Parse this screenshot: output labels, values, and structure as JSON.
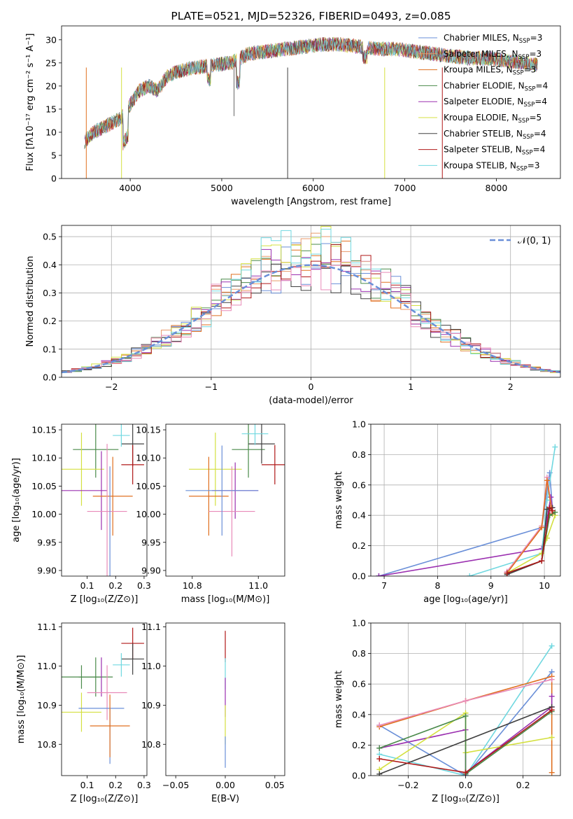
{
  "chart_data": [
    {
      "type": "line",
      "title": "PLATE=0521, MJD=52326, FIBERID=0493, z=0.085",
      "xlabel": "wavelength [Angstrom, rest frame]",
      "ylabel": "Flux [fλ10⁻¹⁷ erg cm⁻² s⁻¹ A⁻¹]",
      "xlim": [
        3250,
        8700
      ],
      "ylim": [
        0,
        33
      ],
      "xticks": [
        4000,
        5000,
        6000,
        7000,
        8000
      ],
      "yticks": [
        0,
        5,
        10,
        15,
        20,
        25,
        30
      ],
      "grid": false,
      "legend": "upper right",
      "series": [
        {
          "name": "Chabrier MILES, N",
          "sub": "SSP",
          "suffix": "=3",
          "color": "#6a8fd8"
        },
        {
          "name": "Salpeter MILES, N",
          "sub": "SSP",
          "suffix": "=3",
          "color": "#e89a6a"
        },
        {
          "name": "Kroupa MILES, N",
          "sub": "SSP",
          "suffix": "=3",
          "color": "#e07020"
        },
        {
          "name": "Chabrier ELODIE, N",
          "sub": "SSP",
          "suffix": "=4",
          "color": "#4a8a4a"
        },
        {
          "name": "Salpeter ELODIE, N",
          "sub": "SSP",
          "suffix": "=4",
          "color": "#9b30b0"
        },
        {
          "name": "Kroupa ELODIE, N",
          "sub": "SSP",
          "suffix": "=5",
          "color": "#d4e040"
        },
        {
          "name": "Chabrier STELIB, N",
          "sub": "SSP",
          "suffix": "=4",
          "color": "#404040"
        },
        {
          "name": "Salpeter STELIB, N",
          "sub": "SSP",
          "suffix": "=4",
          "color": "#b01818"
        },
        {
          "name": "Kroupa STELIB, N",
          "sub": "SSP",
          "suffix": "=3",
          "color": "#70d8e0"
        }
      ],
      "spectrum_envelope": {
        "x": [
          3500,
          3600,
          3700,
          3800,
          3900,
          4000,
          4100,
          4200,
          4300,
          4400,
          4500,
          4700,
          4900,
          5100,
          5200,
          5300,
          5500,
          5700,
          5900,
          6100,
          6300,
          6500,
          6700,
          6900,
          7100,
          7300,
          7500,
          7700,
          7900,
          8100,
          8300,
          8450
        ],
        "y": [
          8,
          10,
          11,
          12,
          13,
          16,
          19,
          20,
          19,
          22,
          23,
          24,
          24.5,
          25,
          26,
          27,
          27.5,
          28,
          28.5,
          29,
          29,
          28.5,
          28,
          28,
          27.5,
          27,
          26.5,
          26,
          26,
          25.5,
          25,
          24.5
        ]
      }
    },
    {
      "type": "step",
      "xlabel": "(data-model)/error",
      "ylabel": "Normed distribution",
      "xlim": [
        -2.5,
        2.5
      ],
      "ylim": [
        0,
        0.54
      ],
      "xticks": [
        -2,
        -1,
        0,
        1,
        2
      ],
      "yticks": [
        0.0,
        0.1,
        0.2,
        0.3,
        0.4,
        0.5
      ],
      "grid": true,
      "legend": "upper right",
      "gaussian_label": "𝒩(0, 1)",
      "gaussian_color": "#6a8fd8",
      "bin_width": 0.1,
      "bin_start": -2.5
    },
    {
      "type": "errorbar",
      "xlabel": "Z [log₁₀(Z/Z⊙)]",
      "ylabel": "age  [log₁₀(age/yr)]",
      "xlim": [
        0.01,
        0.31
      ],
      "ylim": [
        9.89,
        10.16
      ],
      "xticks": [
        0.1,
        0.2,
        0.3
      ],
      "yticks": [
        9.9,
        9.95,
        10.0,
        10.05,
        10.1,
        10.15
      ],
      "points": [
        {
          "x": 0.13,
          "y": 10.115,
          "xerr": 0.08,
          "yerr": 0.05,
          "color": "#4a8a4a"
        },
        {
          "x": 0.26,
          "y": 10.125,
          "xerr": 0.04,
          "yerr": 0.04,
          "color": "#404040"
        },
        {
          "x": 0.22,
          "y": 10.14,
          "xerr": 0.03,
          "yerr": 0.02,
          "color": "#70d8e0"
        },
        {
          "x": 0.26,
          "y": 10.088,
          "xerr": 0.04,
          "yerr": 0.035,
          "color": "#b01818"
        },
        {
          "x": 0.08,
          "y": 10.08,
          "xerr": 0.08,
          "yerr": 0.065,
          "color": "#d4e040"
        },
        {
          "x": 0.09,
          "y": 10.042,
          "xerr": 0.08,
          "yerr": 0.0,
          "color": "#9b30b0"
        },
        {
          "x": 0.15,
          "y": 10.042,
          "xerr": 0.0,
          "yerr": 0.07,
          "color": "#9b30b0"
        },
        {
          "x": 0.19,
          "y": 10.032,
          "xerr": 0.07,
          "yerr": 0.07,
          "color": "#e07020"
        },
        {
          "x": 0.17,
          "y": 10.005,
          "xerr": 0.07,
          "yerr": 0.12,
          "color": "#e88ab8"
        },
        {
          "x": 0.18,
          "y": 9.985,
          "xerr": 0.0,
          "yerr": 0.1,
          "color": "#6a8fd8"
        }
      ]
    },
    {
      "type": "errorbar",
      "xlabel": "mass [log₁₀(M/M⊙)]",
      "ylabel": "",
      "xlim": [
        10.72,
        11.08
      ],
      "ylim": [
        9.89,
        10.16
      ],
      "xticks": [
        10.8,
        11.0
      ],
      "yticks": [
        9.9,
        9.95,
        10.0,
        10.05,
        10.1,
        10.15
      ],
      "points": [
        {
          "x": 10.97,
          "y": 10.115,
          "xerr": 0.05,
          "yerr": 0.05,
          "color": "#4a8a4a"
        },
        {
          "x": 11.01,
          "y": 10.125,
          "xerr": 0.04,
          "yerr": 0.035,
          "color": "#404040"
        },
        {
          "x": 10.99,
          "y": 10.143,
          "xerr": 0.04,
          "yerr": 0.02,
          "color": "#70d8e0"
        },
        {
          "x": 11.05,
          "y": 10.088,
          "xerr": 0.04,
          "yerr": 0.035,
          "color": "#b01818"
        },
        {
          "x": 10.87,
          "y": 10.08,
          "xerr": 0.08,
          "yerr": 0.065,
          "color": "#d4e040"
        },
        {
          "x": 10.93,
          "y": 10.042,
          "xerr": 0.07,
          "yerr": 0.05,
          "color": "#9b30b0"
        },
        {
          "x": 10.85,
          "y": 10.032,
          "xerr": 0.06,
          "yerr": 0.07,
          "color": "#e07020"
        },
        {
          "x": 10.92,
          "y": 10.005,
          "xerr": 0.07,
          "yerr": 0.08,
          "color": "#e88ab8"
        },
        {
          "x": 10.89,
          "y": 10.042,
          "xerr": 0.11,
          "yerr": 0.08,
          "color": "#6a8fd8"
        }
      ]
    },
    {
      "type": "line",
      "xlabel": "age  [log₁₀(age/yr)]",
      "ylabel": "mass weight",
      "xlim": [
        6.75,
        10.3
      ],
      "ylim": [
        0,
        1.0
      ],
      "xticks": [
        7,
        8,
        9,
        10
      ],
      "yticks": [
        0.0,
        0.2,
        0.4,
        0.6,
        0.8,
        1.0
      ],
      "grid": true,
      "series": [
        {
          "color": "#6a8fd8",
          "x": [
            6.9,
            9.95,
            10.1,
            10.15
          ],
          "y": [
            0.0,
            0.32,
            0.68,
            0.45
          ]
        },
        {
          "color": "#9b30b0",
          "x": [
            6.9,
            9.95,
            10.12,
            10.15
          ],
          "y": [
            0.0,
            0.18,
            0.52,
            0.45
          ]
        },
        {
          "color": "#70d8e0",
          "x": [
            8.6,
            9.95,
            10.05,
            10.2
          ],
          "y": [
            0.0,
            0.15,
            0.5,
            0.85
          ]
        },
        {
          "color": "#e88ab8",
          "x": [
            9.3,
            9.95,
            10.05,
            10.15
          ],
          "y": [
            0.03,
            0.33,
            0.65,
            0.42
          ]
        },
        {
          "color": "#e07020",
          "x": [
            9.3,
            9.95,
            10.05,
            10.15
          ],
          "y": [
            0.02,
            0.32,
            0.63,
            0.41
          ]
        },
        {
          "color": "#d4e040",
          "x": [
            9.3,
            9.95,
            10.05,
            10.2
          ],
          "y": [
            0.02,
            0.15,
            0.25,
            0.4
          ]
        },
        {
          "color": "#4a8a4a",
          "x": [
            9.3,
            9.95,
            10.1,
            10.2
          ],
          "y": [
            0.02,
            0.1,
            0.4,
            0.42
          ]
        },
        {
          "color": "#404040",
          "x": [
            9.3,
            9.95,
            10.05,
            10.15
          ],
          "y": [
            0.01,
            0.1,
            0.44,
            0.45
          ]
        },
        {
          "color": "#b01818",
          "x": [
            9.3,
            9.95,
            10.1,
            10.15
          ],
          "y": [
            0.02,
            0.1,
            0.45,
            0.43
          ]
        }
      ]
    },
    {
      "type": "errorbar",
      "xlabel": "Z [log₁₀(Z/Z⊙)]",
      "ylabel": "mass [log₁₀(M/M⊙)]",
      "xlim": [
        0.01,
        0.31
      ],
      "ylim": [
        10.72,
        11.11
      ],
      "xticks": [
        0.1,
        0.2,
        0.3
      ],
      "yticks": [
        10.8,
        10.9,
        11.0,
        11.1
      ],
      "points": [
        {
          "x": 0.26,
          "y": 11.058,
          "xerr": 0.04,
          "yerr": 0.04,
          "color": "#b01818"
        },
        {
          "x": 0.26,
          "y": 11.018,
          "xerr": 0.04,
          "yerr": 0.04,
          "color": "#404040"
        },
        {
          "x": 0.22,
          "y": 11.003,
          "xerr": 0.03,
          "yerr": 0.03,
          "color": "#70d8e0"
        },
        {
          "x": 0.08,
          "y": 10.972,
          "xerr": 0.07,
          "yerr": 0.03,
          "color": "#4a8a4a"
        },
        {
          "x": 0.13,
          "y": 10.972,
          "xerr": 0.06,
          "yerr": 0.05,
          "color": "#4a8a4a"
        },
        {
          "x": 0.15,
          "y": 10.972,
          "xerr": 0.0,
          "yerr": 0.05,
          "color": "#9b30b0"
        },
        {
          "x": 0.17,
          "y": 10.932,
          "xerr": 0.07,
          "yerr": 0.07,
          "color": "#e88ab8"
        },
        {
          "x": 0.08,
          "y": 10.882,
          "xerr": 0.07,
          "yerr": 0.05,
          "color": "#d4e040"
        },
        {
          "x": 0.15,
          "y": 10.892,
          "xerr": 0.08,
          "yerr": 0.0,
          "color": "#6a8fd8"
        },
        {
          "x": 0.18,
          "y": 10.82,
          "xerr": 0.0,
          "yerr": 0.07,
          "color": "#6a8fd8"
        },
        {
          "x": 0.18,
          "y": 10.847,
          "xerr": 0.07,
          "yerr": 0.08,
          "color": "#e07020"
        }
      ]
    },
    {
      "type": "errorbar",
      "xlabel": "E(B-V)",
      "ylabel": "",
      "xlim": [
        -0.06,
        0.06
      ],
      "ylim": [
        10.72,
        11.11
      ],
      "xticks": [
        -0.05,
        0.0,
        0.05
      ],
      "xticklabels": [
        "−0.05",
        "0.00",
        "0.05"
      ],
      "yticks": [
        10.8,
        10.9,
        11.0,
        11.1
      ],
      "points": [
        {
          "x": 0.0,
          "y": 11.05,
          "yerr": 0.04,
          "color": "#b01818"
        },
        {
          "x": 0.0,
          "y": 10.98,
          "yerr": 0.04,
          "color": "#70d8e0"
        },
        {
          "x": 0.0,
          "y": 10.92,
          "yerr": 0.05,
          "color": "#9b30b0"
        },
        {
          "x": 0.0,
          "y": 10.85,
          "yerr": 0.05,
          "color": "#d4e040"
        },
        {
          "x": 0.0,
          "y": 10.78,
          "yerr": 0.04,
          "color": "#6a8fd8"
        }
      ]
    },
    {
      "type": "line",
      "xlabel": "Z [log₁₀(Z/Z⊙)]",
      "ylabel": "mass weight",
      "xlim": [
        -0.33,
        0.33
      ],
      "ylim": [
        0,
        1.0
      ],
      "xticks": [
        -0.2,
        0.0,
        0.2
      ],
      "xticklabels": [
        "−0.2",
        "0.0",
        "0.2"
      ],
      "yticks": [
        0.0,
        0.2,
        0.4,
        0.6,
        0.8,
        1.0
      ],
      "grid": true,
      "series": [
        {
          "color": "#70d8e0",
          "x": [
            -0.3,
            0.0,
            0.3
          ],
          "y": [
            0.14,
            0.0,
            0.85
          ]
        },
        {
          "color": "#6a8fd8",
          "x": [
            -0.3,
            0.0,
            0.3
          ],
          "y": [
            0.33,
            0.0,
            0.68
          ]
        },
        {
          "color": "#e07020",
          "x": [
            -0.3,
            0.0,
            0.3,
            0.3
          ],
          "y": [
            0.32,
            0.49,
            0.65,
            0.02
          ]
        },
        {
          "color": "#e88ab8",
          "x": [
            -0.3,
            0.0,
            0.3
          ],
          "y": [
            0.33,
            0.49,
            0.63
          ]
        },
        {
          "color": "#9b30b0",
          "x": [
            -0.3,
            0.0,
            0.0,
            0.3,
            0.3
          ],
          "y": [
            0.18,
            0.3,
            0.02,
            0.45,
            0.52
          ]
        },
        {
          "color": "#d4e040",
          "x": [
            -0.3,
            0.0,
            0.0,
            0.3
          ],
          "y": [
            0.04,
            0.41,
            0.15,
            0.25
          ]
        },
        {
          "color": "#4a8a4a",
          "x": [
            -0.3,
            0.0,
            0.0,
            0.3
          ],
          "y": [
            0.18,
            0.39,
            0.01,
            0.42
          ]
        },
        {
          "color": "#404040",
          "x": [
            -0.3,
            0.3
          ],
          "y": [
            0.01,
            0.45
          ]
        },
        {
          "color": "#b01818",
          "x": [
            -0.3,
            0.0,
            0.3
          ],
          "y": [
            0.11,
            0.02,
            0.43
          ]
        }
      ]
    }
  ]
}
